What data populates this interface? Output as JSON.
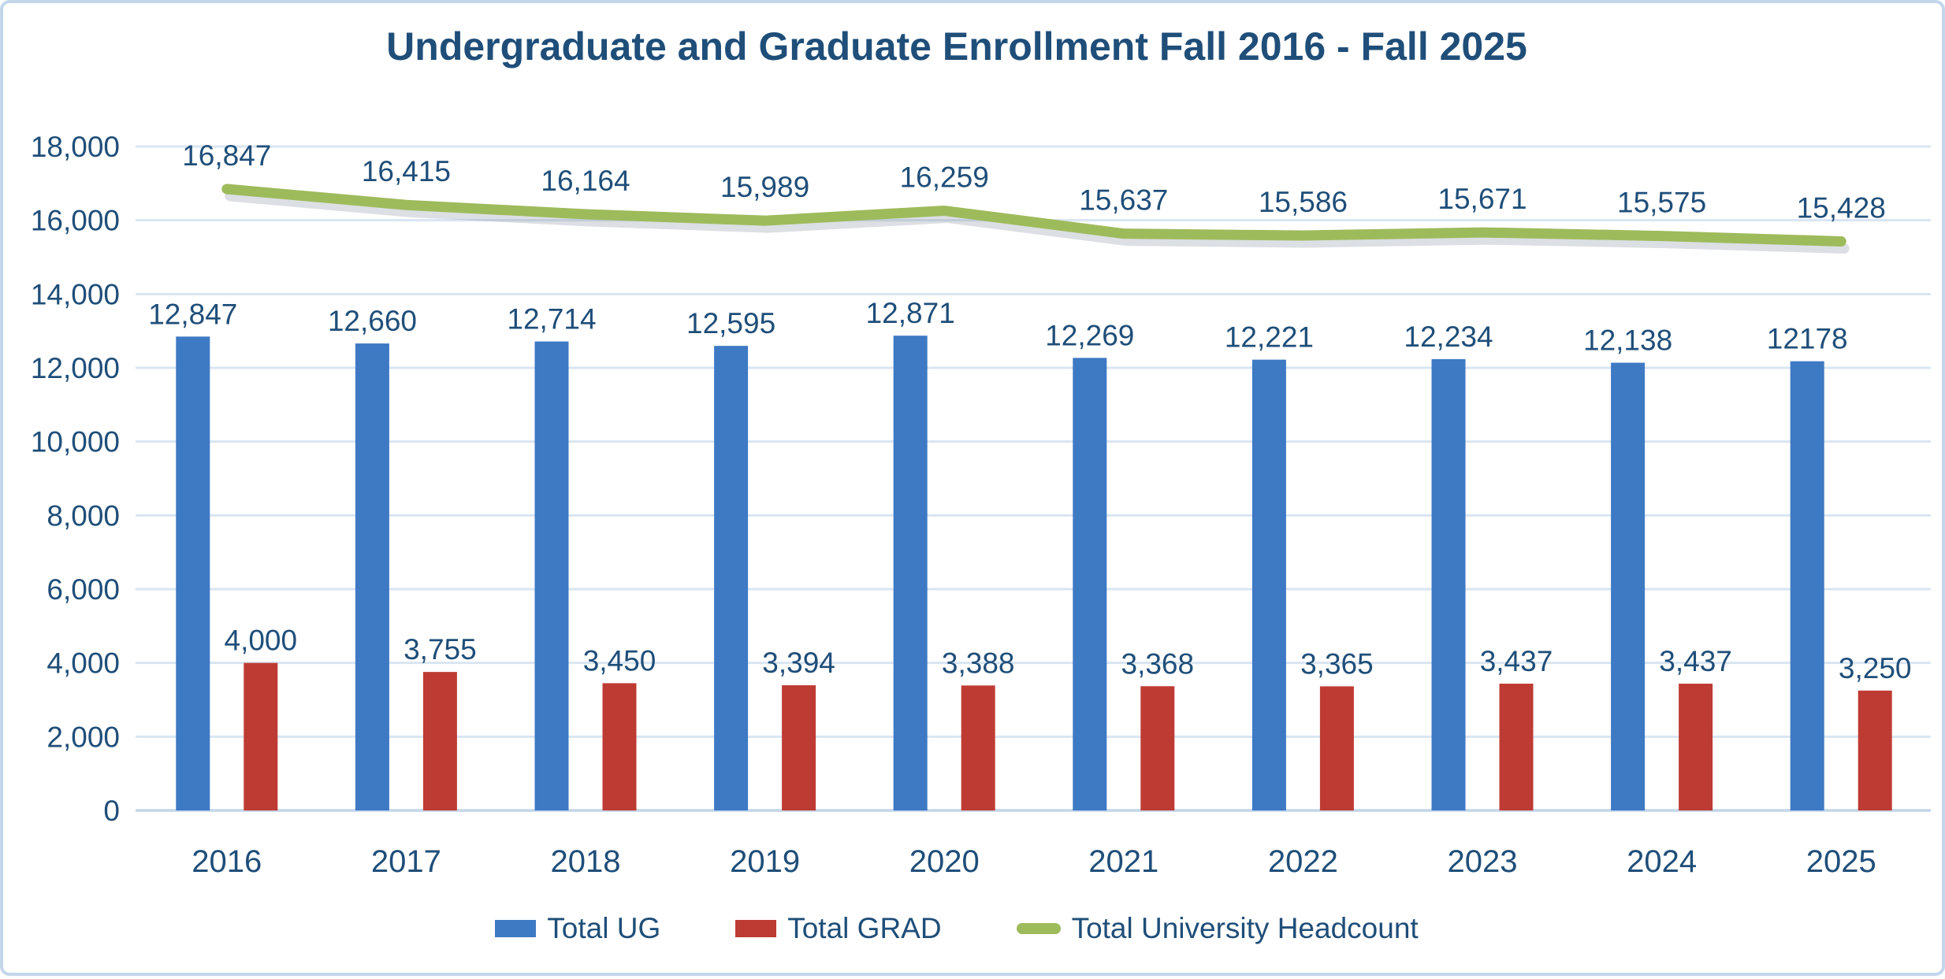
{
  "title": "Undergraduate and Graduate Enrollment Fall 2016 - Fall 2025",
  "colors": {
    "title_text": "#1F4E79",
    "axis_text": "#1F4E79",
    "data_label_text": "#1F4E79",
    "ug_bar": "#3E79C4",
    "grad_bar": "#BE3B33",
    "headcount_line": "#9EBB5C",
    "gridline": "#D9E5F2",
    "axis_line": "#C3D5EA",
    "frame_border": "#C3D6EB",
    "background": "#FFFFFF"
  },
  "chart_data": {
    "type": "bar-line-combo",
    "title": "Undergraduate and Graduate Enrollment Fall 2016 - Fall 2025",
    "categories": [
      "2016",
      "2017",
      "2018",
      "2019",
      "2020",
      "2021",
      "2022",
      "2023",
      "2024",
      "2025"
    ],
    "series": [
      {
        "name": "Total UG",
        "type": "bar",
        "color": "#3E79C4",
        "values": [
          12847,
          12660,
          12714,
          12595,
          12871,
          12269,
          12221,
          12234,
          12138,
          12178
        ],
        "labels": [
          "12,847",
          "12,660",
          "12,714",
          "12,595",
          "12,871",
          "12,269",
          "12,221",
          "12,234",
          "12,138",
          "12178"
        ]
      },
      {
        "name": "Total GRAD",
        "type": "bar",
        "color": "#BE3B33",
        "values": [
          4000,
          3755,
          3450,
          3394,
          3388,
          3368,
          3365,
          3437,
          3437,
          3250
        ],
        "labels": [
          "4,000",
          "3,755",
          "3,450",
          "3,394",
          "3,388",
          "3,368",
          "3,365",
          "3,437",
          "3,437",
          "3,250"
        ]
      },
      {
        "name": "Total University Headcount",
        "type": "line",
        "color": "#9EBB5C",
        "values": [
          16847,
          16415,
          16164,
          15989,
          16259,
          15637,
          15586,
          15671,
          15575,
          15428
        ],
        "labels": [
          "16,847",
          "16,415",
          "16,164",
          "15,989",
          "16,259",
          "15,637",
          "15,586",
          "15,671",
          "15,575",
          "15,428"
        ]
      }
    ],
    "y_axis": {
      "min": 0,
      "max": 18000,
      "step": 2000,
      "tick_labels": [
        "0",
        "2,000",
        "4,000",
        "6,000",
        "8,000",
        "10,000",
        "12,000",
        "14,000",
        "16,000",
        "18,000"
      ]
    },
    "x_axis": {
      "tick_labels": [
        "2016",
        "2017",
        "2018",
        "2019",
        "2020",
        "2021",
        "2022",
        "2023",
        "2024",
        "2025"
      ]
    },
    "grid": "horizontal",
    "legend_position": "bottom"
  }
}
